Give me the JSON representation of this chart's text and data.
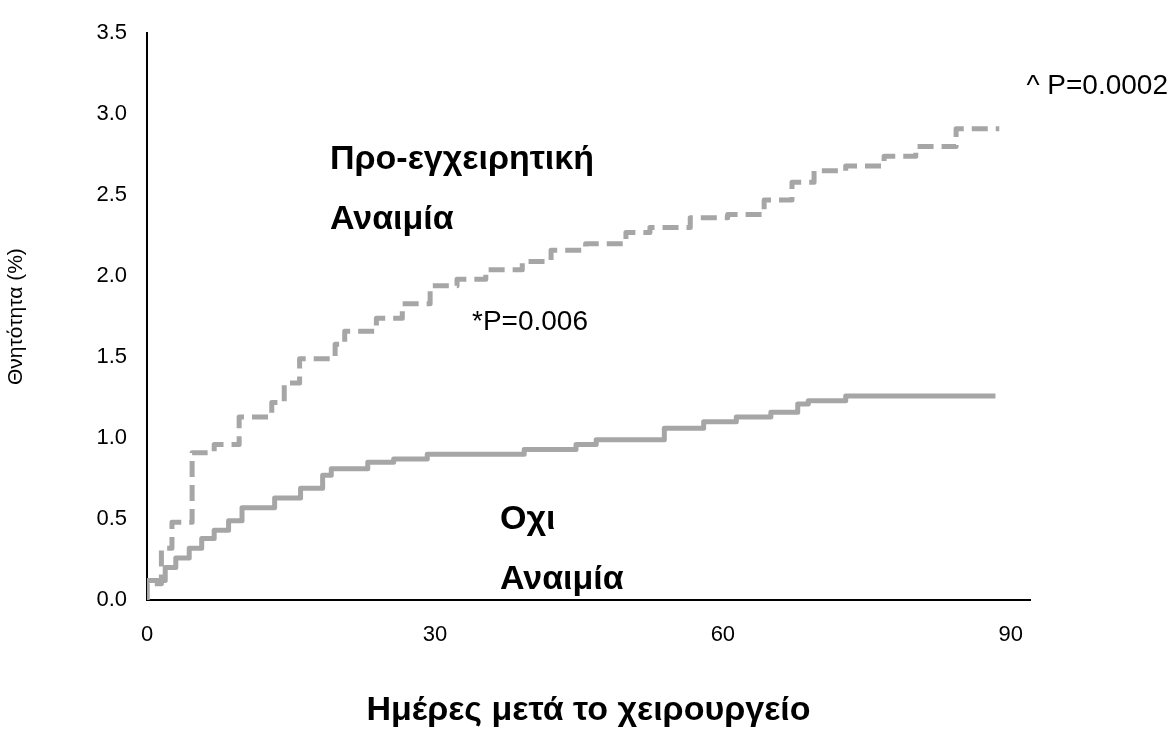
{
  "chart_data": {
    "type": "step",
    "xlabel": "Ημέρες μετά το χειρουργείο",
    "ylabel": "Θνητότητα (%)",
    "xlim": [
      0,
      92
    ],
    "xticks": [
      0,
      30,
      60,
      90
    ],
    "ylim": [
      0,
      3.5
    ],
    "yticks": [
      {
        "value": 0,
        "label": "0.0"
      },
      {
        "value": 0.5,
        "label": "0.5"
      },
      {
        "value": 1,
        "label": "1.0"
      },
      {
        "value": 1.5,
        "label": "1.5"
      },
      {
        "value": 2,
        "label": "2.0"
      },
      {
        "value": 2.5,
        "label": "2.5"
      },
      {
        "value": 3,
        "label": "3.0"
      },
      {
        "value": 3.5,
        "label": "3.5"
      }
    ],
    "legend": false,
    "marker": "none",
    "series": [
      {
        "name": "Προ-εγχειρητική Αναιμία",
        "color": "#a6a6a6",
        "line_style": "dashed",
        "x": [
          0,
          1.5,
          2.6,
          4.7,
          7,
          9.6,
          13,
          14.3,
          15.9,
          19.6,
          20.6,
          23.9,
          26.6,
          29.5,
          32.3,
          35.3,
          39.1,
          42.1,
          45.7,
          49.9,
          52.4,
          56.6,
          60.5,
          64.3,
          67.2,
          69.5,
          72.8,
          76.8,
          80.1,
          84.3,
          87.4,
          88.8
        ],
        "values": [
          0,
          0.1,
          0.32,
          0.48,
          0.91,
          0.96,
          1.13,
          1.22,
          1.34,
          1.49,
          1.58,
          1.66,
          1.74,
          1.83,
          1.94,
          1.98,
          2.04,
          2.09,
          2.16,
          2.2,
          2.27,
          2.3,
          2.36,
          2.38,
          2.47,
          2.58,
          2.65,
          2.68,
          2.74,
          2.8,
          2.91,
          2.91
        ]
      },
      {
        "name": "Οχι Αναιμία",
        "color": "#a6a6a6",
        "line_style": "solid",
        "x": [
          0,
          1.9,
          3,
          4.4,
          5.7,
          7,
          8.5,
          9.9,
          13.3,
          16,
          18.3,
          19.2,
          23,
          25.7,
          29.2,
          39.3,
          44.7,
          46.8,
          53.9,
          58,
          61.4,
          65,
          67.8,
          68.9,
          72.8,
          85.1,
          88.4
        ],
        "values": [
          0,
          0.12,
          0.2,
          0.26,
          0.32,
          0.38,
          0.43,
          0.49,
          0.57,
          0.63,
          0.69,
          0.77,
          0.81,
          0.85,
          0.87,
          0.9,
          0.93,
          0.96,
          0.99,
          1.06,
          1.1,
          1.13,
          1.16,
          1.21,
          1.23,
          1.26,
          1.26
        ]
      }
    ],
    "annotations": [
      "*P=0.006",
      "^ P=0.0002"
    ]
  }
}
